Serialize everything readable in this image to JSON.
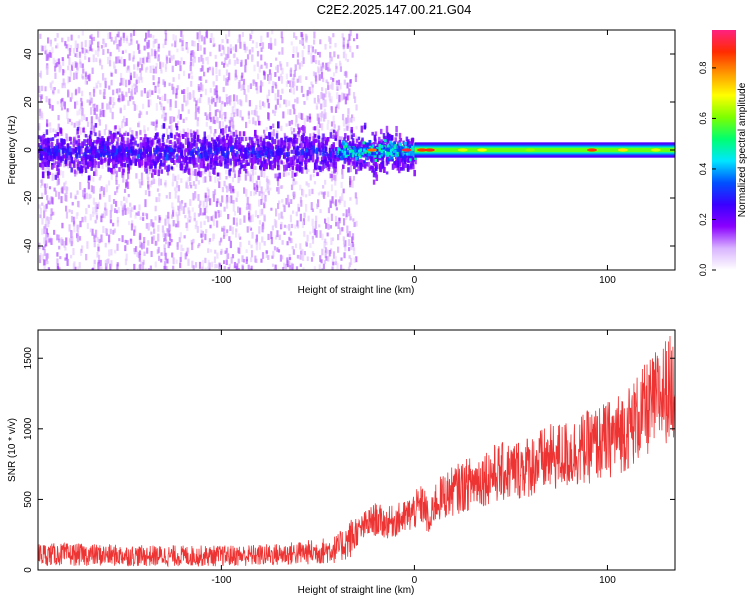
{
  "figure": {
    "title": "C2E2.2025.147.00.21.G04"
  },
  "chart_data": [
    {
      "type": "heatmap",
      "title": "C2E2.2025.147.00.21.G04",
      "xlabel": "Height of straight line (km)",
      "ylabel": "Frequency (Hz)",
      "xlim": [
        -195,
        135
      ],
      "ylim": [
        -50,
        50
      ],
      "xticks": [
        -100,
        0,
        100
      ],
      "xtick_labels": [
        "-100",
        "0",
        "100"
      ],
      "yticks": [
        -40,
        -20,
        0,
        20,
        40
      ],
      "ytick_labels": [
        "-40",
        "-20",
        "0",
        "20",
        "40"
      ],
      "colorbar": {
        "label": "Normalized spectral amplitude",
        "range": [
          0,
          0.95
        ],
        "ticks": [
          0.0,
          0.2,
          0.4,
          0.6,
          0.8
        ],
        "tick_labels": [
          "0.0",
          "0.2",
          "0.4",
          "0.6",
          "0.8"
        ],
        "colormap": [
          "#ffffff",
          "#d9b3ff",
          "#8a00ff",
          "#3a00ff",
          "#0050ff",
          "#00e6ff",
          "#00ff70",
          "#7dff00",
          "#ffff00",
          "#ff9a00",
          "#ff2b00",
          "#ff2080"
        ]
      },
      "description_of_signal": {
        "noise_region_x": [
          -195,
          -35
        ],
        "transition_x": [
          -35,
          0
        ],
        "signal_region_x": [
          0,
          135
        ],
        "signal_center_freq": 0
      },
      "grid": false
    },
    {
      "type": "line",
      "xlabel": "Height of straight line (km)",
      "ylabel": "SNR (10 * v/v)",
      "xlim": [
        -195,
        135
      ],
      "ylim": [
        0,
        1700
      ],
      "xticks": [
        -100,
        0,
        100
      ],
      "xtick_labels": [
        "-100",
        "0",
        "100"
      ],
      "yticks": [
        0,
        500,
        1000,
        1500
      ],
      "ytick_labels": [
        "0",
        "500",
        "1000",
        "1500"
      ],
      "color": "#ee3333",
      "grid": false,
      "x": [
        -195,
        -180,
        -160,
        -140,
        -120,
        -100,
        -80,
        -70,
        -60,
        -50,
        -40,
        -35,
        -30,
        -25,
        -20,
        -15,
        -10,
        -5,
        0,
        5,
        8,
        10,
        15,
        20,
        30,
        40,
        50,
        60,
        70,
        80,
        90,
        100,
        110,
        120,
        130,
        135
      ],
      "y": [
        110,
        110,
        105,
        100,
        100,
        100,
        105,
        110,
        120,
        130,
        150,
        200,
        260,
        320,
        360,
        330,
        350,
        370,
        420,
        470,
        300,
        470,
        520,
        560,
        620,
        680,
        700,
        740,
        790,
        820,
        870,
        920,
        1000,
        1130,
        1270,
        1300
      ]
    }
  ]
}
